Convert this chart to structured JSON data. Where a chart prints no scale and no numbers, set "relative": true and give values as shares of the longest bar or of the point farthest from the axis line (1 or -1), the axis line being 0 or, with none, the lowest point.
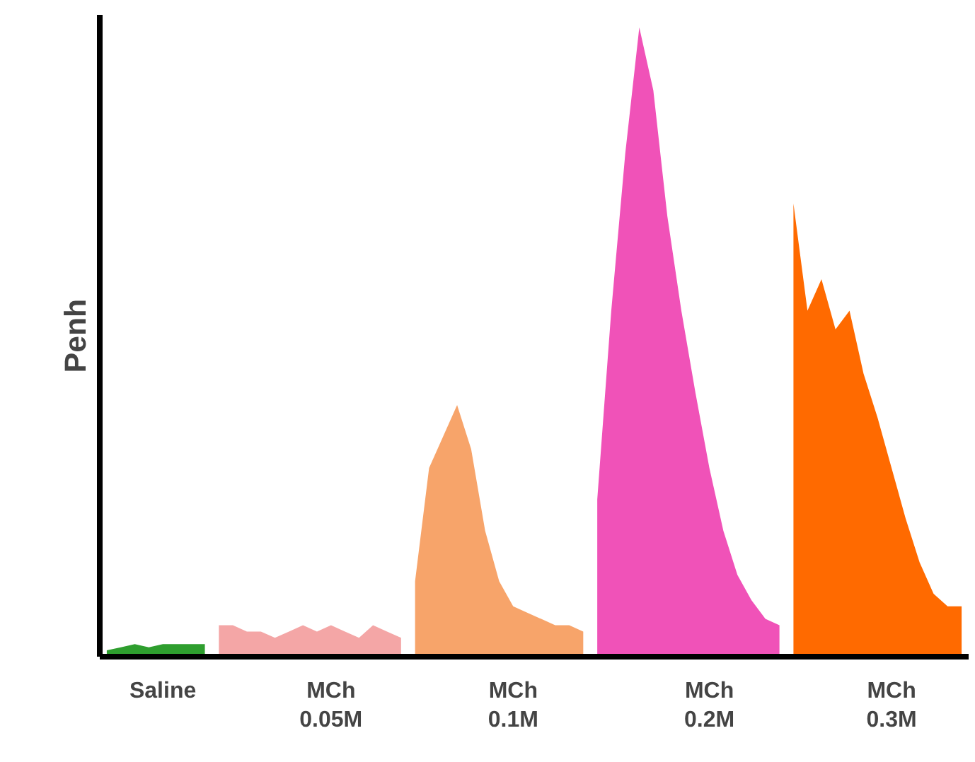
{
  "chart_data": {
    "type": "area",
    "relative": true,
    "ylabel": "Penh",
    "tick_labels": "x",
    "grid": false,
    "categories": [
      null,
      null,
      null,
      null,
      "Saline",
      null,
      null,
      null,
      null,
      null,
      null,
      null,
      null,
      null,
      null,
      null,
      "MCh\n0.05M",
      null,
      null,
      null,
      null,
      null,
      null,
      null,
      null,
      null,
      null,
      null,
      null,
      "MCh\n0.1M",
      null,
      null,
      null,
      null,
      null,
      null,
      null,
      null,
      null,
      null,
      null,
      null,
      null,
      "MCh\n0.2M",
      null,
      null,
      null,
      null,
      null,
      null,
      null,
      null,
      null,
      null,
      null,
      null,
      "MCh\n0.3M",
      null,
      null,
      null,
      null,
      null
    ],
    "series": [
      {
        "color": "#2e9e2e",
        "values": [
          0.01,
          0.015,
          0.02,
          0.015,
          0.02,
          0.02,
          0.02,
          0.02,
          null,
          null,
          null,
          null,
          null,
          null,
          null,
          null,
          null,
          null,
          null,
          null,
          null,
          null,
          null,
          null,
          null,
          null,
          null,
          null,
          null,
          null,
          null,
          null,
          null,
          null,
          null,
          null,
          null,
          null,
          null,
          null,
          null,
          null,
          null,
          null,
          null,
          null,
          null,
          null,
          null,
          null,
          null,
          null,
          null,
          null,
          null,
          null,
          null,
          null,
          null,
          null,
          null,
          null
        ]
      },
      {
        "color": "#f4a6a6",
        "values": [
          null,
          null,
          null,
          null,
          null,
          null,
          null,
          null,
          0.05,
          0.05,
          0.04,
          0.04,
          0.03,
          0.04,
          0.05,
          0.04,
          0.05,
          0.04,
          0.03,
          0.05,
          0.04,
          0.03,
          null,
          null,
          null,
          null,
          null,
          null,
          null,
          null,
          null,
          null,
          null,
          null,
          null,
          null,
          null,
          null,
          null,
          null,
          null,
          null,
          null,
          null,
          null,
          null,
          null,
          null,
          null,
          null,
          null,
          null,
          null,
          null,
          null,
          null,
          null,
          null,
          null,
          null,
          null,
          null
        ]
      },
      {
        "color": "#f7a46a",
        "values": [
          null,
          null,
          null,
          null,
          null,
          null,
          null,
          null,
          null,
          null,
          null,
          null,
          null,
          null,
          null,
          null,
          null,
          null,
          null,
          null,
          null,
          null,
          0.12,
          0.3,
          0.35,
          0.4,
          0.33,
          0.2,
          0.12,
          0.08,
          0.07,
          0.06,
          0.05,
          0.05,
          0.04,
          null,
          null,
          null,
          null,
          null,
          null,
          null,
          null,
          null,
          null,
          null,
          null,
          null,
          null,
          null,
          null,
          null,
          null,
          null,
          null,
          null,
          null,
          null,
          null,
          null,
          null,
          null
        ]
      },
      {
        "color": "#f052b8",
        "values": [
          null,
          null,
          null,
          null,
          null,
          null,
          null,
          null,
          null,
          null,
          null,
          null,
          null,
          null,
          null,
          null,
          null,
          null,
          null,
          null,
          null,
          null,
          null,
          null,
          null,
          null,
          null,
          null,
          null,
          null,
          null,
          null,
          null,
          null,
          null,
          0.25,
          0.55,
          0.8,
          1,
          0.9,
          0.7,
          0.55,
          0.42,
          0.3,
          0.2,
          0.13,
          0.09,
          0.06,
          0.05,
          null,
          null,
          null,
          null,
          null,
          null,
          null,
          null,
          null,
          null,
          null,
          null,
          null
        ]
      },
      {
        "color": "#ff6a00",
        "values": [
          null,
          null,
          null,
          null,
          null,
          null,
          null,
          null,
          null,
          null,
          null,
          null,
          null,
          null,
          null,
          null,
          null,
          null,
          null,
          null,
          null,
          null,
          null,
          null,
          null,
          null,
          null,
          null,
          null,
          null,
          null,
          null,
          null,
          null,
          null,
          null,
          null,
          null,
          null,
          null,
          null,
          null,
          null,
          null,
          null,
          null,
          null,
          null,
          null,
          0.72,
          0.55,
          0.6,
          0.52,
          0.55,
          0.45,
          0.38,
          0.3,
          0.22,
          0.15,
          0.1,
          0.08,
          0.08
        ]
      }
    ]
  }
}
